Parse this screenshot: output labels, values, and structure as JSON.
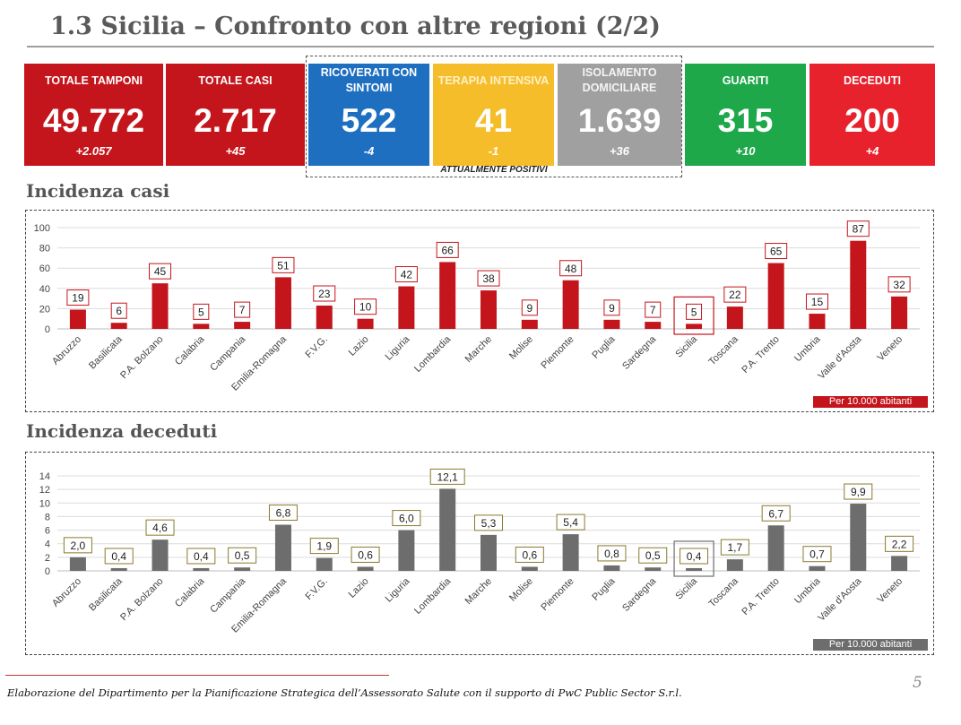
{
  "header": {
    "title": "1.3 Sicilia – Confronto con altre regioni (2/2)"
  },
  "kpis": [
    {
      "label": "TOTALE TAMPONI",
      "value": "49.772",
      "delta": "+2.057",
      "color": "#c4151c"
    },
    {
      "label": "TOTALE CASI",
      "value": "2.717",
      "delta": "+45",
      "color": "#c4151c"
    },
    {
      "label": "RICOVERATI CON SINTOMI",
      "value": "522",
      "delta": "-4",
      "color": "#1f6fc1"
    },
    {
      "label": "TERAPIA INTENSIVA",
      "value": "41",
      "delta": "-1",
      "color": "#f6bd2b"
    },
    {
      "label": "ISOLAMENTO DOMICILIARE",
      "value": "1.639",
      "delta": "+36",
      "color": "#a0a0a0"
    },
    {
      "label": "GUARITI",
      "value": "315",
      "delta": "+10",
      "color": "#1fa84a"
    },
    {
      "label": "DECEDUTI",
      "value": "200",
      "delta": "+4",
      "color": "#e8222d"
    }
  ],
  "group_label": "ATTUALMENTE POSITIVI",
  "sections": {
    "cases_title": "Incidenza casi",
    "deaths_title": "Incidenza deceduti"
  },
  "chart_data": [
    {
      "type": "bar",
      "title": "Incidenza casi",
      "categories": [
        "Abruzzo",
        "Basilicata",
        "P.A. Bolzano",
        "Calabria",
        "Campania",
        "Emilia-Romagna",
        "F.V.G.",
        "Lazio",
        "Liguria",
        "Lombardia",
        "Marche",
        "Molise",
        "Piemonte",
        "Puglia",
        "Sardegna",
        "Sicilia",
        "Toscana",
        "P.A. Trento",
        "Umbria",
        "Valle d'Aosta",
        "Veneto"
      ],
      "values": [
        19,
        6,
        45,
        5,
        7,
        51,
        23,
        10,
        42,
        66,
        38,
        9,
        48,
        9,
        7,
        5,
        22,
        65,
        15,
        87,
        32
      ],
      "value_labels": [
        "19",
        "6",
        "45",
        "5",
        "7",
        "51",
        "23",
        "10",
        "42",
        "66",
        "38",
        "9",
        "48",
        "9",
        "7",
        "5",
        "22",
        "65",
        "15",
        "87",
        "32"
      ],
      "yticks": [
        "0",
        "20",
        "40",
        "60",
        "80",
        "100"
      ],
      "ylim": [
        0,
        100
      ],
      "highlight": "Sicilia",
      "grid": true,
      "bar_color": "#c4151c",
      "note": "Per 10.000 abitanti"
    },
    {
      "type": "bar",
      "title": "Incidenza deceduti",
      "categories": [
        "Abruzzo",
        "Basilicata",
        "P.A. Bolzano",
        "Calabria",
        "Campania",
        "Emilia-Romagna",
        "F.V.G.",
        "Lazio",
        "Liguria",
        "Lombardia",
        "Marche",
        "Molise",
        "Piemonte",
        "Puglia",
        "Sardegna",
        "Sicilia",
        "Toscana",
        "P.A. Trento",
        "Umbria",
        "Valle d'Aosta",
        "Veneto"
      ],
      "values": [
        2.0,
        0.4,
        4.6,
        0.4,
        0.5,
        6.8,
        1.9,
        0.6,
        6.0,
        12.1,
        5.3,
        0.6,
        5.4,
        0.8,
        0.5,
        0.4,
        1.7,
        6.7,
        0.7,
        9.9,
        2.2
      ],
      "value_labels": [
        "2,0",
        "0,4",
        "4,6",
        "0,4",
        "0,5",
        "6,8",
        "1,9",
        "0,6",
        "6,0",
        "12,1",
        "5,3",
        "0,6",
        "5,4",
        "0,8",
        "0,5",
        "0,4",
        "1,7",
        "6,7",
        "0,7",
        "9,9",
        "2,2"
      ],
      "yticks": [
        "0",
        "2",
        "4",
        "6",
        "8",
        "10",
        "12",
        "14"
      ],
      "ylim": [
        0,
        14
      ],
      "highlight": "Sicilia",
      "grid": true,
      "bar_color": "#6d6d6d",
      "label_border": "#8a7a2e",
      "note": "Per 10.000 abitanti"
    }
  ],
  "footer": {
    "text": "Elaborazione del Dipartimento per la Pianificazione Strategica dell’Assessorato Salute con il supporto di PwC Public Sector S.r.l.",
    "page": "5"
  }
}
